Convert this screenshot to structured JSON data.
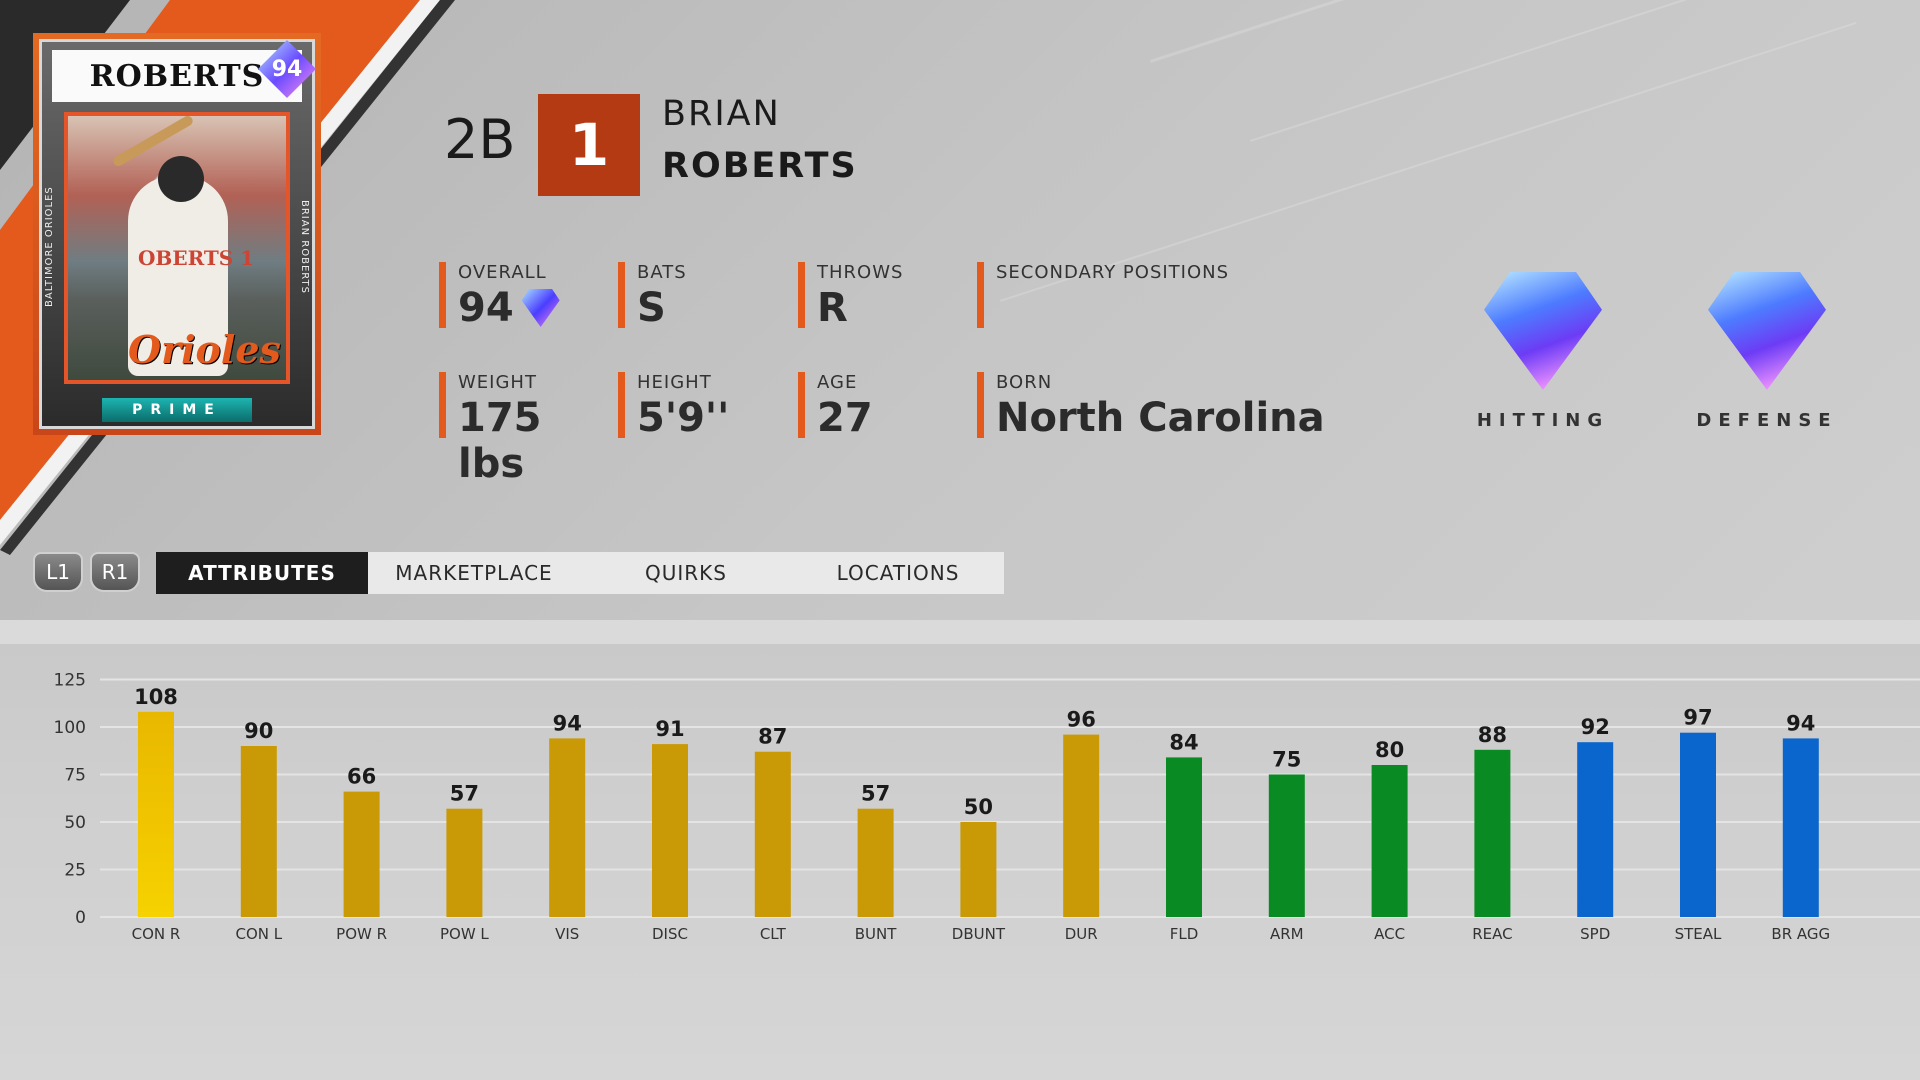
{
  "card": {
    "name": "ROBERTS",
    "rating": "94",
    "tier": "PRIME",
    "side_left": "BALTIMORE ORIOLES",
    "side_right": "BRIAN ROBERTS",
    "team_logo": "Orioles",
    "jersey": "OBERTS 1"
  },
  "player": {
    "position": "2B",
    "number": "1",
    "first_name": "BRIAN",
    "last_name": "ROBERTS"
  },
  "stats": {
    "overall_label": "OVERALL",
    "overall": "94",
    "bats_label": "BATS",
    "bats": "S",
    "throws_label": "THROWS",
    "throws": "R",
    "secondary_label": "SECONDARY POSITIONS",
    "secondary": "",
    "weight_label": "WEIGHT",
    "weight": "175 lbs",
    "height_label": "HEIGHT",
    "height": "5'9''",
    "age_label": "AGE",
    "age": "27",
    "born_label": "BORN",
    "born": "North Carolina"
  },
  "badges": {
    "hitting": "HITTING",
    "defense": "DEFENSE"
  },
  "nav": {
    "l1": "L1",
    "r1": "R1",
    "tabs": [
      "ATTRIBUTES",
      "MARKETPLACE",
      "QUIRKS",
      "LOCATIONS"
    ],
    "active": 0
  },
  "colors": {
    "accent": "#e35a1c",
    "number_box": "#b33a12",
    "hitting": "#c99a06",
    "hitting_highlight": "#f6d200",
    "fielding": "#0a8a22",
    "running": "#0a66cc"
  },
  "chart_data": {
    "type": "bar",
    "categories": [
      "CON R",
      "CON L",
      "POW R",
      "POW L",
      "VIS",
      "DISC",
      "CLT",
      "BUNT",
      "DBUNT",
      "DUR",
      "FLD",
      "ARM",
      "ACC",
      "REAC",
      "SPD",
      "STEAL",
      "BR AGG"
    ],
    "values": [
      108,
      90,
      66,
      57,
      94,
      91,
      87,
      57,
      50,
      96,
      84,
      75,
      80,
      88,
      92,
      97,
      94
    ],
    "groups": [
      "hitting",
      "hitting",
      "hitting",
      "hitting",
      "hitting",
      "hitting",
      "hitting",
      "hitting",
      "hitting",
      "hitting",
      "fielding",
      "fielding",
      "fielding",
      "fielding",
      "running",
      "running",
      "running"
    ],
    "highlighted_index": 0,
    "yticks": [
      0,
      25,
      50,
      75,
      100,
      125
    ],
    "ylim": [
      0,
      125
    ],
    "grid": true,
    "title": "",
    "xlabel": "",
    "ylabel": ""
  }
}
